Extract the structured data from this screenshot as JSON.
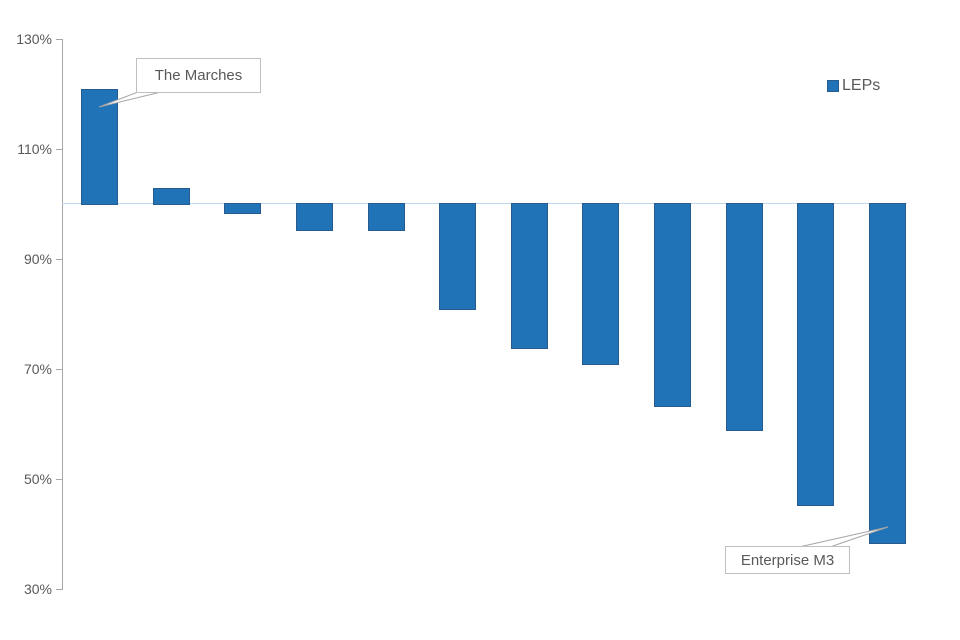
{
  "chart_data": {
    "type": "bar",
    "title": "",
    "xlabel": "",
    "ylabel": "",
    "series": [
      {
        "name": "LEPs",
        "values": [
          121,
          103,
          98,
          95,
          95,
          80.5,
          73.5,
          70.5,
          63,
          58.5,
          45,
          38
        ]
      }
    ],
    "baseline_value": 100,
    "ylim": [
      30,
      130
    ],
    "ytick_values": [
      130,
      110,
      90,
      70,
      50,
      30
    ],
    "ytick_labels": [
      "130%",
      "110%",
      "90%",
      "70%",
      "50%",
      "30%"
    ],
    "xtick_labels_visible": false,
    "grid": "only-100%-baseline",
    "legend": {
      "label": "LEPs",
      "position": "top-right"
    },
    "annotations": [
      {
        "text": "The Marches",
        "bar_index": 0
      },
      {
        "text": "Enterprise M3",
        "bar_index": 11
      }
    ],
    "colors": {
      "bar_fill": "#2173b7",
      "bar_border": "#275b8d",
      "baseline_line": "#bdd7ee",
      "axis_line": "#a6a6a6",
      "label_text": "#595959",
      "callout_border": "#bfbfbf",
      "background": "#ffffff"
    }
  }
}
